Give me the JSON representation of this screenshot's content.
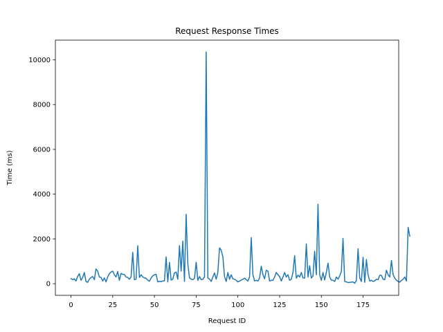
{
  "chart_data": {
    "type": "line",
    "title": "Request Response Times",
    "xlabel": "Request ID",
    "ylabel": "Time (ms)",
    "xlim": [
      -9.35,
      196.35
    ],
    "ylim": [
      -520,
      10880
    ],
    "xticks": [
      0,
      25,
      50,
      75,
      100,
      125,
      150,
      175
    ],
    "yticks": [
      0,
      2000,
      4000,
      6000,
      8000,
      10000
    ],
    "grid": false,
    "line_color": "#1f77b4",
    "series": [
      {
        "values": [
          230,
          180,
          220,
          120,
          320,
          450,
          150,
          280,
          500,
          100,
          60,
          200,
          280,
          320,
          180,
          660,
          560,
          300,
          280,
          120,
          260,
          80,
          300,
          450,
          520,
          560,
          400,
          300,
          550,
          150,
          460,
          420,
          410,
          300,
          280,
          200,
          300,
          1400,
          180,
          200,
          1700,
          280,
          400,
          300,
          260,
          240,
          160,
          110,
          250,
          350,
          400,
          420,
          80,
          110,
          90,
          120,
          130,
          1200,
          80,
          950,
          160,
          200,
          480,
          520,
          200,
          1700,
          560,
          1900,
          100,
          3100,
          880,
          260,
          200,
          180,
          240,
          960,
          150,
          320,
          180,
          200,
          300,
          10350,
          260,
          200,
          100,
          300,
          480,
          200,
          500,
          1600,
          1500,
          1200,
          320,
          100,
          500,
          200,
          400,
          220,
          200,
          150,
          80,
          120,
          160,
          200,
          250,
          180,
          120,
          300,
          2060,
          400,
          120,
          150,
          120,
          260,
          780,
          400,
          220,
          600,
          560,
          120,
          150,
          150,
          300,
          500,
          400,
          320,
          120,
          300,
          500,
          300,
          400,
          150,
          200,
          500,
          1250,
          250,
          380,
          300,
          500,
          260,
          250,
          1780,
          300,
          800,
          250,
          350,
          1450,
          400,
          3550,
          400,
          150,
          500,
          170,
          500,
          920,
          300,
          160,
          150,
          100,
          300,
          200,
          350,
          550,
          2020,
          100,
          80,
          50,
          60,
          70,
          80,
          20,
          140,
          1560,
          260,
          100,
          1180,
          60,
          1080,
          400,
          120,
          150,
          100,
          130,
          200,
          180,
          380,
          370,
          200,
          180,
          600,
          400,
          300,
          1040,
          400,
          250,
          150,
          100,
          70,
          150,
          200,
          300,
          120,
          2520,
          2120
        ]
      }
    ]
  }
}
